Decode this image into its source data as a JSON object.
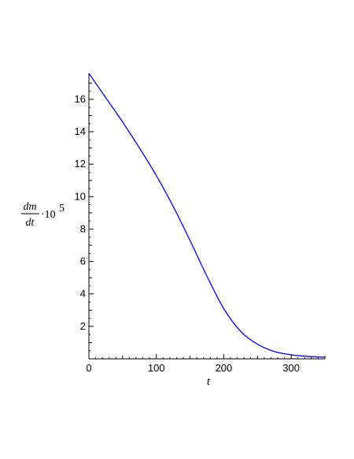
{
  "chart_data": {
    "type": "line",
    "title": "",
    "xlabel": "t",
    "ylabel": {
      "numerator": "dm",
      "denominator": "dt",
      "multiplier": "·10",
      "exponent": "5"
    },
    "xlim": [
      0,
      350
    ],
    "ylim": [
      0,
      17.6
    ],
    "x_ticks": [
      0,
      100,
      200,
      300
    ],
    "y_ticks": [
      2,
      4,
      6,
      8,
      10,
      12,
      14,
      16
    ],
    "grid": false,
    "legend": "none",
    "series": [
      {
        "color": "#0000ff",
        "x": [
          0,
          25,
          50,
          75,
          100,
          125,
          150,
          175,
          200,
          225,
          250,
          275,
          300,
          325,
          350
        ],
        "y": [
          17.6,
          16.1,
          14.6,
          13.0,
          11.3,
          9.4,
          7.3,
          5.1,
          3.1,
          1.7,
          0.9,
          0.45,
          0.25,
          0.15,
          0.1
        ]
      }
    ]
  }
}
